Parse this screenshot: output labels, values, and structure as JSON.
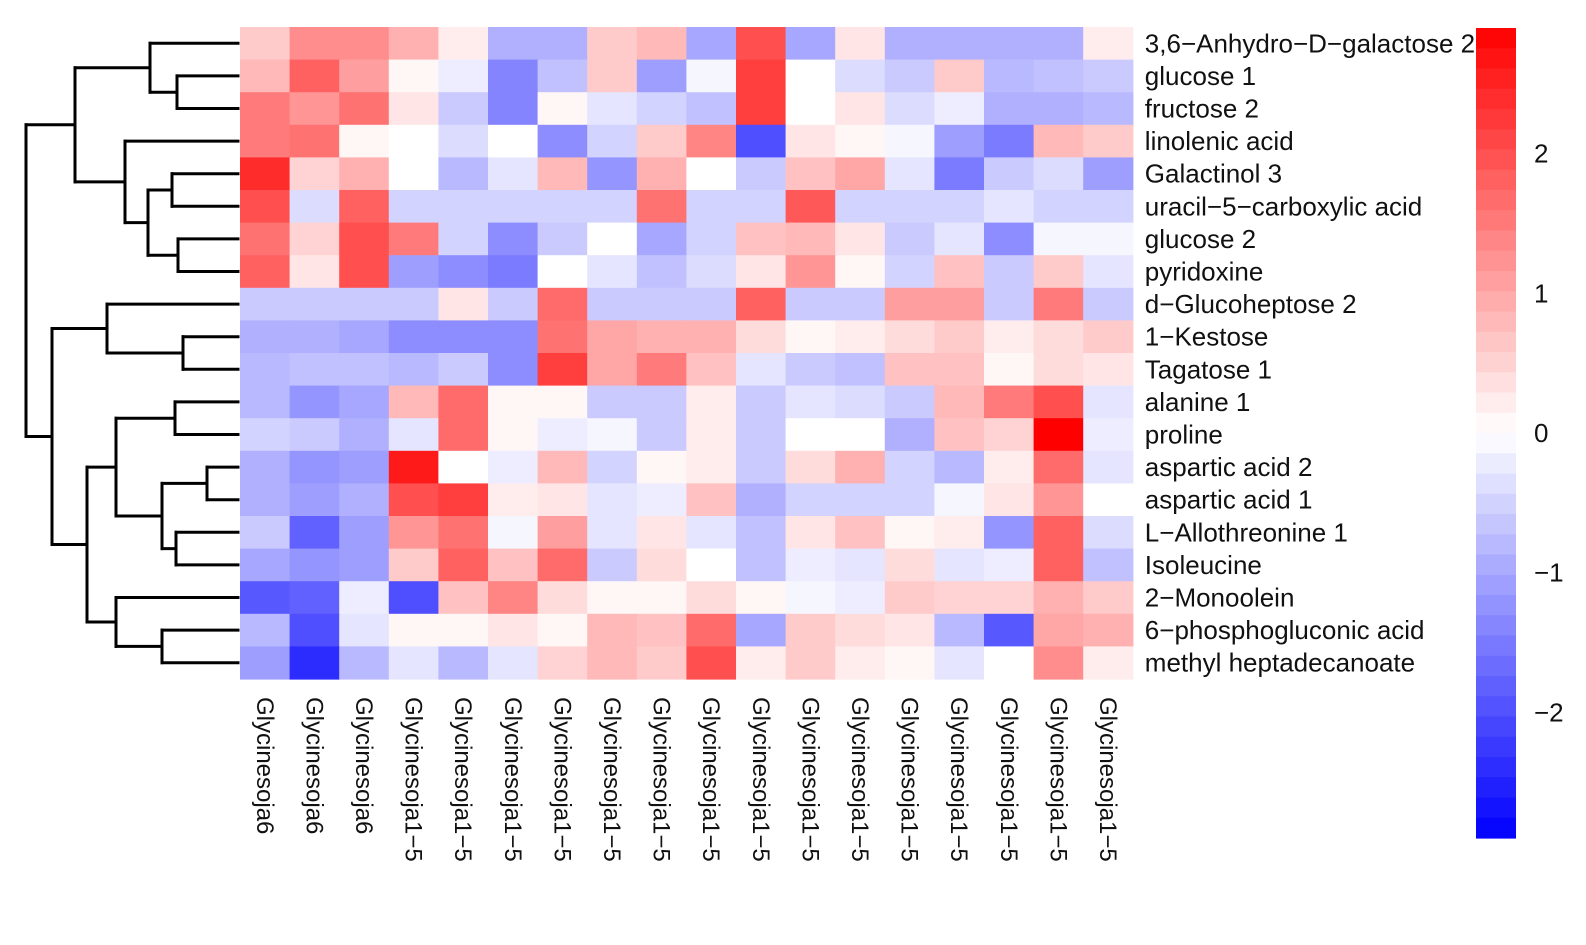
{
  "chart_data": {
    "type": "heatmap",
    "rows": [
      "3,6−Anhydro−D−galactose 2",
      "glucose 1",
      "fructose 2",
      "linolenic acid",
      "Galactinol 3",
      "uracil−5−carboxylic acid",
      "glucose 2",
      "pyridoxine",
      "d−Glucoheptose 2",
      "1−Kestose",
      "Tagatose 1",
      "alanine 1",
      "proline",
      "aspartic acid 2",
      "aspartic acid 1",
      "L−Allothreonine 1",
      "Isoleucine",
      "2−Monoolein",
      "6−phosphogluconic acid",
      "methyl heptadecanoate"
    ],
    "columns": [
      "Glycinesoja6",
      "Glycinesoja6",
      "Glycinesoja6",
      "Glycinesoja1−5",
      "Glycinesoja1−5",
      "Glycinesoja1−5",
      "Glycinesoja1−5",
      "Glycinesoja1−5",
      "Glycinesoja1−5",
      "Glycinesoja1−5",
      "Glycinesoja1−5",
      "Glycinesoja1−5",
      "Glycinesoja1−5",
      "Glycinesoja1−5",
      "Glycinesoja1−5",
      "Glycinesoja1−5",
      "Glycinesoja1−5",
      "Glycinesoja1−5"
    ],
    "values": [
      [
        0.6,
        1.3,
        1.3,
        0.9,
        0.2,
        -0.9,
        -0.9,
        0.6,
        0.8,
        -1.0,
        2.0,
        -1.0,
        0.3,
        -0.9,
        -0.9,
        -0.9,
        -0.9,
        0.2
      ],
      [
        0.8,
        1.8,
        1.1,
        0.1,
        -0.2,
        -1.4,
        -0.7,
        0.6,
        -1.1,
        -0.1,
        2.2,
        0.0,
        -0.4,
        -0.6,
        0.6,
        -0.8,
        -0.7,
        -0.6
      ],
      [
        1.5,
        1.2,
        1.6,
        0.3,
        -0.6,
        -1.4,
        0.1,
        -0.3,
        -0.5,
        -0.7,
        2.2,
        0.0,
        0.3,
        -0.4,
        -0.2,
        -0.9,
        -0.9,
        -0.8
      ],
      [
        1.5,
        1.6,
        0.1,
        0.0,
        -0.4,
        0.0,
        -1.3,
        -0.5,
        0.6,
        1.4,
        -2.0,
        0.3,
        0.1,
        -0.1,
        -1.1,
        -1.5,
        0.8,
        0.6
      ],
      [
        2.4,
        0.5,
        0.9,
        0.0,
        -0.8,
        -0.3,
        0.8,
        -1.2,
        0.9,
        0.0,
        -0.6,
        0.7,
        1.0,
        -0.3,
        -1.5,
        -0.6,
        -0.4,
        -1.1
      ],
      [
        2.0,
        -0.4,
        1.8,
        -0.5,
        -0.5,
        -0.5,
        -0.5,
        -0.5,
        1.6,
        -0.5,
        -0.5,
        1.9,
        -0.5,
        -0.5,
        -0.5,
        -0.3,
        -0.5,
        -0.5
      ],
      [
        1.6,
        0.5,
        2.0,
        1.5,
        -0.5,
        -1.3,
        -0.6,
        0.0,
        -1.0,
        -0.5,
        0.7,
        0.8,
        0.3,
        -0.6,
        -0.3,
        -1.3,
        -0.1,
        -0.1
      ],
      [
        1.8,
        0.3,
        2.0,
        -1.1,
        -1.3,
        -1.5,
        0.0,
        -0.3,
        -0.7,
        -0.4,
        0.3,
        1.2,
        0.1,
        -0.5,
        0.7,
        -0.6,
        0.6,
        -0.3
      ],
      [
        -0.6,
        -0.6,
        -0.6,
        -0.6,
        0.3,
        -0.6,
        1.7,
        -0.6,
        -0.6,
        -0.6,
        1.8,
        -0.6,
        -0.6,
        1.1,
        1.1,
        -0.6,
        1.5,
        -0.6
      ],
      [
        -0.9,
        -0.9,
        -1.0,
        -1.3,
        -1.3,
        -1.3,
        1.6,
        1.0,
        0.9,
        0.9,
        0.4,
        0.1,
        0.2,
        0.4,
        0.6,
        0.2,
        0.4,
        0.6
      ],
      [
        -0.8,
        -0.7,
        -0.7,
        -0.8,
        -0.6,
        -1.3,
        2.2,
        1.0,
        1.5,
        0.7,
        -0.3,
        -0.6,
        -0.7,
        0.7,
        0.7,
        0.1,
        0.4,
        0.3
      ],
      [
        -0.8,
        -1.2,
        -1.0,
        0.8,
        1.7,
        0.1,
        0.1,
        -0.6,
        -0.6,
        0.2,
        -0.6,
        -0.3,
        -0.4,
        -0.6,
        0.8,
        1.5,
        2.0,
        -0.3
      ],
      [
        -0.5,
        -0.6,
        -0.9,
        -0.3,
        1.7,
        0.1,
        -0.2,
        -0.1,
        -0.6,
        0.2,
        -0.6,
        0.0,
        0.0,
        -0.9,
        0.7,
        0.5,
        2.9,
        -0.2
      ],
      [
        -0.9,
        -1.2,
        -1.1,
        2.6,
        0.0,
        -0.2,
        0.8,
        -0.5,
        0.1,
        0.2,
        -0.6,
        0.4,
        0.9,
        -0.5,
        -0.8,
        0.2,
        1.7,
        -0.3
      ],
      [
        -0.9,
        -1.1,
        -0.9,
        2.0,
        2.2,
        0.2,
        0.3,
        -0.3,
        -0.2,
        0.7,
        -0.9,
        -0.5,
        -0.5,
        -0.5,
        -0.1,
        0.3,
        1.2,
        0.0
      ],
      [
        -0.6,
        -1.8,
        -1.1,
        1.2,
        1.6,
        -0.1,
        1.1,
        -0.3,
        0.3,
        -0.3,
        -0.7,
        0.3,
        0.7,
        0.1,
        0.2,
        -1.2,
        1.8,
        -0.4
      ],
      [
        -1.0,
        -1.2,
        -1.1,
        0.6,
        1.8,
        0.7,
        1.7,
        -0.6,
        0.4,
        0.0,
        -0.7,
        -0.2,
        -0.3,
        0.4,
        -0.3,
        -0.2,
        1.8,
        -0.7
      ],
      [
        -1.9,
        -1.8,
        -0.2,
        -2.0,
        0.7,
        1.4,
        0.4,
        0.1,
        0.1,
        0.4,
        0.1,
        -0.1,
        -0.2,
        0.6,
        0.5,
        0.5,
        0.9,
        0.6
      ],
      [
        -0.8,
        -2.0,
        -0.3,
        0.1,
        0.1,
        0.3,
        0.1,
        0.8,
        0.7,
        1.7,
        -1.0,
        0.6,
        0.4,
        0.3,
        -0.8,
        -1.9,
        1.0,
        0.9
      ],
      [
        -1.1,
        -2.4,
        -0.8,
        -0.3,
        -0.8,
        -0.3,
        0.5,
        0.8,
        0.6,
        2.0,
        0.2,
        0.6,
        0.2,
        0.1,
        -0.3,
        0.0,
        1.3,
        0.2
      ]
    ],
    "colorbar": {
      "min": -2.9,
      "max": 2.9,
      "ticks": [
        2,
        1,
        0,
        -1,
        -2
      ],
      "tick_labels": [
        "2",
        "1",
        "0",
        "−1",
        "−2"
      ],
      "low_color": "#0000ff",
      "mid_color": "#ffffff",
      "high_color": "#ff0000"
    },
    "dendrogram": "row clustering dendrogram on the left (two main clusters: rows 1–8 and rows 9–20)"
  }
}
